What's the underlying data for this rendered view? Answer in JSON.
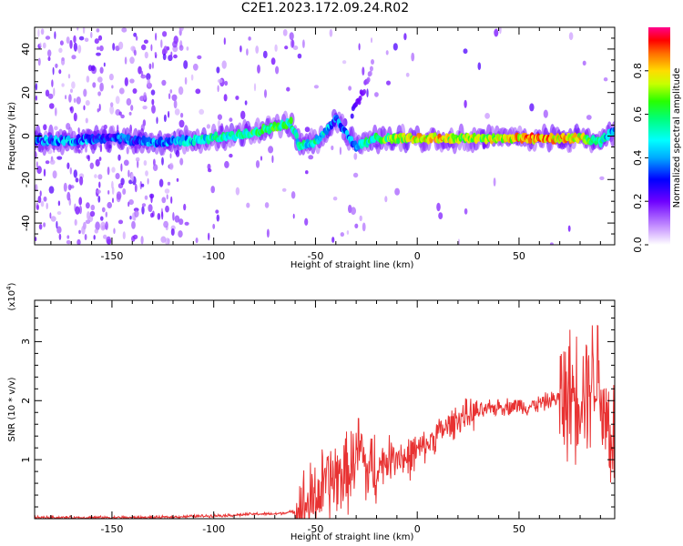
{
  "header": {
    "title": "C2E1.2023.172.09.24.R02"
  },
  "colors": {
    "spectrum_low": "#c060ff",
    "spectrum_mid": "#00ffff",
    "spectrum_high": "#ff2020",
    "snr_line": "#e83232",
    "frame": "#000000"
  },
  "chart_data": [
    {
      "type": "heatmap",
      "title": "",
      "xlabel": "Height of straight line (km)",
      "ylabel": "Frequency (Hz)",
      "xlim": [
        -188,
        97
      ],
      "ylim": [
        -50,
        50
      ],
      "xticks": [
        -150,
        -100,
        -50,
        0,
        50
      ],
      "yticks": [
        -40,
        -20,
        0,
        20,
        40
      ],
      "colorbar": {
        "label": "Normalized spectral amplitude",
        "range": [
          0,
          1
        ],
        "ticks": [
          0.0,
          0.2,
          0.4,
          0.6,
          0.8
        ],
        "tick_labels": [
          "0.0",
          "0.2",
          "0.4",
          "0.6",
          "0.8"
        ]
      },
      "ridge": {
        "x": [
          -188,
          -170,
          -150,
          -130,
          -110,
          -100,
          -90,
          -80,
          -70,
          -62,
          -58,
          -50,
          -40,
          -30,
          -20,
          -10,
          0,
          10,
          20,
          30,
          40,
          50,
          60,
          70,
          80,
          90,
          95
        ],
        "y": [
          -2,
          -2,
          -1,
          -3,
          -2,
          -1,
          0,
          2,
          4,
          6,
          -4,
          -3,
          8,
          -5,
          -1,
          -1,
          -1,
          -1,
          -1,
          -1,
          -1,
          -1,
          -1,
          -1,
          -1,
          -3,
          2
        ],
        "amplitude": [
          0.35,
          0.4,
          0.3,
          0.35,
          0.45,
          0.5,
          0.55,
          0.6,
          0.6,
          0.55,
          0.5,
          0.5,
          0.35,
          0.4,
          0.6,
          0.7,
          0.75,
          0.8,
          0.7,
          0.7,
          0.72,
          0.8,
          0.85,
          0.8,
          0.75,
          0.5,
          0.4
        ]
      },
      "branch": {
        "x": [
          -32,
          -29,
          -27,
          -25,
          -23,
          -22
        ],
        "y": [
          10,
          15,
          20,
          24,
          30,
          33
        ],
        "amplitude": [
          0.25,
          0.2,
          0.2,
          0.15,
          0.1,
          0.1
        ]
      }
    },
    {
      "type": "line",
      "title": "",
      "xlabel": "Height of straight line (km)",
      "ylabel": "SNR (10 * v/v)",
      "y_scale_label": "(x10",
      "y_scale_exponent": "4",
      "y_scale_suffix": ")",
      "xlim": [
        -188,
        97
      ],
      "ylim": [
        0,
        3.7
      ],
      "xticks": [
        -150,
        -100,
        -50,
        0,
        50
      ],
      "yticks": [
        1,
        2,
        3
      ],
      "series": [
        {
          "x": [
            -188,
            -160,
            -130,
            -110,
            -90,
            -80,
            -70,
            -60,
            -55,
            -50,
            -45,
            -40,
            -35,
            -32,
            -28,
            -25,
            -20,
            -15,
            -10,
            -5,
            0,
            5,
            10,
            15,
            20,
            25,
            30,
            35,
            40,
            45,
            50,
            55,
            60,
            65,
            70,
            75,
            80,
            85,
            88,
            90,
            92,
            95,
            97
          ],
          "y": [
            0.02,
            0.02,
            0.02,
            0.04,
            0.06,
            0.08,
            0.08,
            0.12,
            0.2,
            0.35,
            0.6,
            0.7,
            0.75,
            0.9,
            1.2,
            0.8,
            0.85,
            1.0,
            1.1,
            1.0,
            1.15,
            1.25,
            1.45,
            1.55,
            1.7,
            1.75,
            1.8,
            1.85,
            1.9,
            1.9,
            1.92,
            1.9,
            1.95,
            2.0,
            2.05,
            2.1,
            2.2,
            2.3,
            2.6,
            2.2,
            1.8,
            1.5,
            1.3
          ]
        }
      ]
    }
  ]
}
